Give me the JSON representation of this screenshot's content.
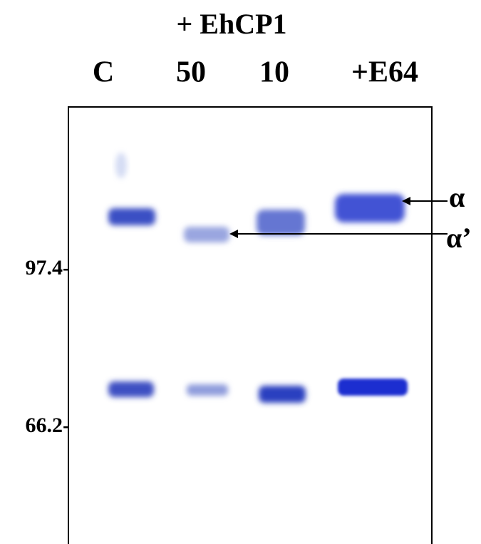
{
  "header": {
    "treatment": "+ EhCP1"
  },
  "lanes": [
    "C",
    "50",
    "10",
    "+E64"
  ],
  "markers": [
    "97.4-",
    "66.2-"
  ],
  "bands": [
    "α",
    "α’"
  ]
}
